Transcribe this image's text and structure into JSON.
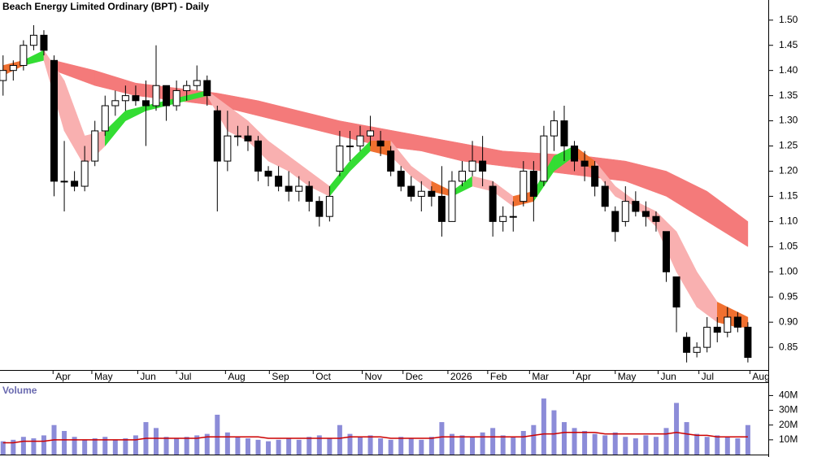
{
  "chart_data": {
    "type": "candlestick",
    "title": "Beach Energy Limited Ordinary (BPT) - Daily",
    "x": [
      0,
      1,
      2,
      3,
      4,
      5,
      6,
      7,
      8,
      9,
      10,
      11,
      12,
      13,
      14,
      15,
      16,
      17,
      18,
      19,
      20,
      21,
      22,
      23,
      24,
      25,
      26,
      27,
      28,
      29,
      30,
      31,
      32,
      33,
      34,
      35,
      36,
      37,
      38,
      39,
      40,
      41,
      42,
      43,
      44,
      45,
      46,
      47,
      48,
      49,
      50,
      51,
      52,
      53,
      54,
      55,
      56,
      57,
      58,
      59,
      60,
      61,
      62,
      63,
      64,
      65,
      66,
      67,
      68,
      69,
      70,
      71,
      72,
      73
    ],
    "open": [
      1.38,
      1.4,
      1.41,
      1.45,
      1.47,
      1.42,
      1.18,
      1.18,
      1.17,
      1.22,
      1.28,
      1.33,
      1.34,
      1.35,
      1.34,
      1.33,
      1.37,
      1.33,
      1.36,
      1.37,
      1.38,
      1.32,
      1.22,
      1.27,
      1.27,
      1.26,
      1.2,
      1.19,
      1.17,
      1.16,
      1.17,
      1.14,
      1.11,
      1.2,
      1.25,
      1.25,
      1.27,
      1.26,
      1.24,
      1.2,
      1.17,
      1.15,
      1.16,
      1.15,
      1.1,
      1.18,
      1.2,
      1.22,
      1.17,
      1.1,
      1.11,
      1.14,
      1.2,
      1.18,
      1.27,
      1.3,
      1.25,
      1.22,
      1.21,
      1.17,
      1.12,
      1.1,
      1.14,
      1.12,
      1.11,
      1.08,
      0.99,
      0.87,
      0.84,
      0.85,
      0.89,
      0.88,
      0.91,
      0.89
    ],
    "high": [
      1.43,
      1.42,
      1.46,
      1.49,
      1.48,
      1.43,
      1.26,
      1.2,
      1.25,
      1.3,
      1.35,
      1.36,
      1.37,
      1.37,
      1.38,
      1.45,
      1.37,
      1.38,
      1.38,
      1.41,
      1.39,
      1.33,
      1.32,
      1.29,
      1.29,
      1.27,
      1.21,
      1.21,
      1.2,
      1.19,
      1.18,
      1.15,
      1.17,
      1.28,
      1.28,
      1.29,
      1.31,
      1.28,
      1.25,
      1.21,
      1.19,
      1.18,
      1.17,
      1.21,
      1.2,
      1.22,
      1.26,
      1.27,
      1.18,
      1.13,
      1.14,
      1.22,
      1.22,
      1.29,
      1.32,
      1.33,
      1.26,
      1.24,
      1.22,
      1.18,
      1.13,
      1.17,
      1.16,
      1.14,
      1.12,
      1.08,
      0.99,
      0.88,
      0.86,
      0.91,
      0.91,
      0.93,
      0.92,
      0.9
    ],
    "low": [
      1.35,
      1.38,
      1.4,
      1.44,
      1.43,
      1.15,
      1.12,
      1.16,
      1.16,
      1.21,
      1.27,
      1.31,
      1.32,
      1.33,
      1.25,
      1.32,
      1.3,
      1.32,
      1.34,
      1.36,
      1.33,
      1.12,
      1.2,
      1.25,
      1.24,
      1.18,
      1.17,
      1.16,
      1.14,
      1.14,
      1.12,
      1.09,
      1.1,
      1.19,
      1.22,
      1.24,
      1.25,
      1.23,
      1.19,
      1.16,
      1.14,
      1.12,
      1.13,
      1.07,
      1.1,
      1.17,
      1.19,
      1.17,
      1.07,
      1.08,
      1.08,
      1.13,
      1.1,
      1.17,
      1.24,
      1.22,
      1.2,
      1.18,
      1.15,
      1.12,
      1.06,
      1.09,
      1.11,
      1.09,
      1.08,
      0.98,
      0.88,
      0.82,
      0.83,
      0.84,
      0.86,
      0.87,
      0.88,
      0.82
    ],
    "close": [
      1.4,
      1.41,
      1.45,
      1.47,
      1.44,
      1.18,
      1.18,
      1.17,
      1.22,
      1.28,
      1.33,
      1.34,
      1.35,
      1.34,
      1.33,
      1.37,
      1.33,
      1.36,
      1.37,
      1.38,
      1.35,
      1.22,
      1.27,
      1.27,
      1.26,
      1.2,
      1.19,
      1.17,
      1.16,
      1.17,
      1.14,
      1.11,
      1.15,
      1.25,
      1.25,
      1.27,
      1.28,
      1.25,
      1.2,
      1.17,
      1.15,
      1.16,
      1.15,
      1.1,
      1.18,
      1.2,
      1.22,
      1.2,
      1.1,
      1.11,
      1.11,
      1.2,
      1.15,
      1.27,
      1.3,
      1.25,
      1.22,
      1.21,
      1.17,
      1.13,
      1.08,
      1.14,
      1.12,
      1.11,
      1.1,
      1.0,
      0.93,
      0.84,
      0.85,
      0.89,
      0.88,
      0.91,
      0.89,
      0.83
    ],
    "up_color": "#ffffff",
    "down_color": "#000000",
    "xlim": [
      -0.3,
      75
    ],
    "xticks": [
      {
        "value": 4.9,
        "label": "Apr"
      },
      {
        "value": 8.7,
        "label": "May"
      },
      {
        "value": 13.2,
        "label": "Jun"
      },
      {
        "value": 17.0,
        "label": "Jul"
      },
      {
        "value": 21.8,
        "label": "Aug"
      },
      {
        "value": 26.1,
        "label": "Sep"
      },
      {
        "value": 30.4,
        "label": "Oct"
      },
      {
        "value": 35.2,
        "label": "Nov"
      },
      {
        "value": 39.2,
        "label": "Dec"
      },
      {
        "value": 43.6,
        "label": "2026"
      },
      {
        "value": 47.5,
        "label": "Feb"
      },
      {
        "value": 51.6,
        "label": "Mar"
      },
      {
        "value": 55.9,
        "label": "Apr"
      },
      {
        "value": 60.0,
        "label": "May"
      },
      {
        "value": 64.2,
        "label": "Jun"
      },
      {
        "value": 68.2,
        "label": "Jul"
      },
      {
        "value": 73.2,
        "label": "Aug"
      }
    ],
    "ylim": [
      0.805,
      1.54
    ],
    "yticks": [
      0.85,
      {
        "value": 0.9,
        "label": "0.90"
      },
      0.95,
      {
        "value": 1.0,
        "label": "1.00"
      },
      1.05,
      {
        "value": 1.1,
        "label": "1.10"
      },
      1.15,
      {
        "value": 1.2,
        "label": "1.20"
      },
      1.25,
      {
        "value": 1.3,
        "label": "1.30"
      },
      1.35,
      {
        "value": 1.4,
        "label": "1.40"
      },
      1.45,
      {
        "value": 1.5,
        "label": "1.50"
      }
    ],
    "bands": [
      {
        "x": [
          5,
          9,
          13,
          17,
          21,
          25,
          29,
          33,
          37,
          41,
          45,
          49,
          53,
          57,
          61,
          65,
          69,
          73
        ],
        "lower": [
          1.4,
          1.37,
          1.35,
          1.34,
          1.33,
          1.31,
          1.29,
          1.27,
          1.25,
          1.24,
          1.22,
          1.21,
          1.2,
          1.19,
          1.18,
          1.15,
          1.1,
          1.05
        ],
        "upper": [
          1.42,
          1.4,
          1.375,
          1.365,
          1.355,
          1.34,
          1.32,
          1.3,
          1.285,
          1.27,
          1.255,
          1.24,
          1.235,
          1.23,
          1.22,
          1.2,
          1.16,
          1.1
        ],
        "color": "#f47a7a"
      },
      {
        "x": [
          0,
          2,
          4,
          6,
          8,
          10,
          12,
          14,
          16,
          18,
          20,
          22,
          24,
          26,
          28,
          30,
          32,
          34,
          36,
          38,
          40,
          42,
          44,
          46,
          48,
          50,
          52,
          54,
          56,
          58,
          60,
          62,
          64,
          66,
          68,
          70,
          72,
          73
        ],
        "lower": [
          1.39,
          1.41,
          1.42,
          1.28,
          1.21,
          1.25,
          1.3,
          1.32,
          1.33,
          1.34,
          1.35,
          1.28,
          1.26,
          1.22,
          1.2,
          1.17,
          1.15,
          1.2,
          1.24,
          1.23,
          1.19,
          1.16,
          1.15,
          1.17,
          1.16,
          1.13,
          1.14,
          1.2,
          1.23,
          1.2,
          1.15,
          1.13,
          1.09,
          1.0,
          0.93,
          0.9,
          0.89,
          0.89
        ],
        "upper": [
          1.41,
          1.42,
          1.44,
          1.38,
          1.27,
          1.28,
          1.32,
          1.33,
          1.34,
          1.35,
          1.36,
          1.33,
          1.3,
          1.26,
          1.23,
          1.2,
          1.17,
          1.22,
          1.26,
          1.26,
          1.21,
          1.18,
          1.16,
          1.19,
          1.18,
          1.15,
          1.16,
          1.23,
          1.25,
          1.22,
          1.17,
          1.14,
          1.12,
          1.08,
          1.0,
          0.94,
          0.92,
          0.91
        ],
        "segment_colors": [
          "#f07030",
          "#33dd33",
          "#f9b0b0",
          "#f9b0b0",
          "#f9b0b0",
          "#33dd33",
          "#33dd33",
          "#33dd33",
          "#33dd33",
          "#33dd33",
          "#f9b0b0",
          "#f9b0b0",
          "#f9b0b0",
          "#f9b0b0",
          "#f9b0b0",
          "#f9b0b0",
          "#33dd33",
          "#33dd33",
          "#f07030",
          "#f9b0b0",
          "#f9b0b0",
          "#f07030",
          "#33dd33",
          "#f9b0b0",
          "#f9b0b0",
          "#f07030",
          "#33dd33",
          "#33dd33",
          "#f07030",
          "#f9b0b0",
          "#f9b0b0",
          "#f9b0b0",
          "#f9b0b0",
          "#f9b0b0",
          "#f9b0b0",
          "#f07030",
          "#f07030"
        ]
      }
    ],
    "volume": {
      "label": "Volume",
      "color": "#8c8cd8",
      "average_color": "#cc0000",
      "values": [
        9000000,
        10000000,
        12000000,
        11000000,
        13000000,
        20000000,
        16000000,
        12000000,
        10000000,
        11000000,
        12000000,
        10000000,
        11000000,
        13000000,
        22000000,
        18000000,
        12000000,
        11000000,
        12000000,
        13000000,
        14000000,
        27000000,
        15000000,
        12000000,
        11000000,
        10000000,
        9000000,
        10000000,
        11000000,
        10000000,
        12000000,
        13000000,
        11000000,
        20000000,
        14000000,
        12000000,
        13000000,
        11000000,
        10000000,
        12000000,
        11000000,
        10000000,
        12000000,
        22000000,
        14000000,
        13000000,
        12000000,
        15000000,
        18000000,
        13000000,
        12000000,
        16000000,
        20000000,
        38000000,
        30000000,
        22000000,
        18000000,
        16000000,
        14000000,
        13000000,
        15000000,
        12000000,
        11000000,
        13000000,
        12000000,
        18000000,
        35000000,
        22000000,
        14000000,
        12000000,
        13000000,
        12000000,
        11000000,
        20000000
      ],
      "average": [
        8000000,
        8000000,
        9000000,
        9000000,
        9000000,
        10000000,
        10000000,
        10000000,
        10000000,
        10000000,
        10000000,
        10000000,
        10000000,
        10000000,
        11000000,
        11000000,
        11000000,
        11000000,
        11000000,
        11000000,
        12000000,
        12000000,
        12000000,
        12000000,
        12000000,
        12000000,
        11000000,
        11000000,
        11000000,
        11000000,
        11000000,
        11000000,
        11000000,
        11000000,
        12000000,
        12000000,
        12000000,
        12000000,
        11000000,
        11000000,
        11000000,
        11000000,
        11000000,
        12000000,
        12000000,
        12000000,
        12000000,
        12000000,
        12000000,
        12000000,
        12000000,
        12000000,
        13000000,
        14000000,
        14000000,
        15000000,
        15000000,
        15000000,
        15000000,
        14000000,
        14000000,
        14000000,
        14000000,
        14000000,
        14000000,
        14000000,
        15000000,
        14000000,
        13000000,
        13000000,
        12000000,
        12000000,
        12000000,
        12000000
      ],
      "ylim": [
        0,
        48500000
      ],
      "yticks": [
        {
          "value": 10000000,
          "label": "10M"
        },
        {
          "value": 20000000,
          "label": "20M"
        },
        {
          "value": 30000000,
          "label": "30M"
        },
        {
          "value": 40000000,
          "label": "40M"
        }
      ]
    }
  }
}
